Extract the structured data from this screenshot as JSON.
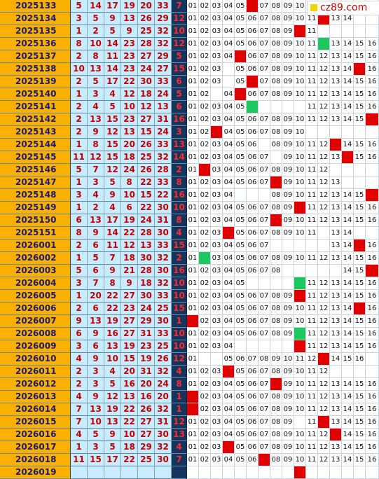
{
  "logo": {
    "text": "cz89.com"
  },
  "rows": [
    {
      "issue": "2025133",
      "reds": [
        "5",
        "14",
        "17",
        "19",
        "20",
        "33"
      ],
      "blue": "7",
      "bz": [
        "01",
        "02",
        "03",
        "04",
        "05",
        "",
        "07",
        "08",
        "09",
        "10",
        "",
        "",
        "",
        "",
        "",
        ""
      ],
      "hit": [
        6
      ],
      "green": []
    },
    {
      "issue": "2025134",
      "reds": [
        "3",
        "5",
        "9",
        "13",
        "26",
        "29"
      ],
      "blue": "12",
      "bz": [
        "01",
        "02",
        "03",
        "04",
        "05",
        "06",
        "07",
        "08",
        "09",
        "10",
        "11",
        "12",
        "13",
        "14",
        "",
        ""
      ],
      "hit": [
        12
      ],
      "green": []
    },
    {
      "issue": "2025135",
      "reds": [
        "1",
        "2",
        "5",
        "9",
        "25",
        "32"
      ],
      "blue": "10",
      "bz": [
        "01",
        "02",
        "03",
        "04",
        "05",
        "06",
        "07",
        "08",
        "09",
        "10",
        "11",
        "",
        "",
        "",
        "",
        ""
      ],
      "hit": [
        10
      ],
      "green": []
    },
    {
      "issue": "2025136",
      "reds": [
        "8",
        "10",
        "14",
        "23",
        "28",
        "32"
      ],
      "blue": "12",
      "bz": [
        "01",
        "02",
        "03",
        "04",
        "05",
        "06",
        "07",
        "08",
        "09",
        "10",
        "11",
        "",
        "13",
        "14",
        "15",
        "16"
      ],
      "hit": [],
      "green": [
        12
      ]
    },
    {
      "issue": "2025137",
      "reds": [
        "2",
        "8",
        "11",
        "23",
        "27",
        "29"
      ],
      "blue": "5",
      "bz": [
        "01",
        "02",
        "03",
        "04",
        "05",
        "06",
        "07",
        "08",
        "09",
        "10",
        "11",
        "12",
        "13",
        "14",
        "15",
        "16"
      ],
      "hit": [
        5
      ],
      "green": []
    },
    {
      "issue": "2025138",
      "reds": [
        "10",
        "13",
        "14",
        "23",
        "24",
        "27"
      ],
      "blue": "15",
      "bz": [
        "01",
        "02",
        "03",
        "",
        "05",
        "06",
        "07",
        "08",
        "09",
        "10",
        "11",
        "12",
        "13",
        "14",
        "15",
        "16"
      ],
      "hit": [
        15
      ],
      "green": []
    },
    {
      "issue": "2025139",
      "reds": [
        "2",
        "5",
        "17",
        "22",
        "30",
        "33"
      ],
      "blue": "6",
      "bz": [
        "01",
        "02",
        "03",
        "",
        "05",
        "06",
        "07",
        "08",
        "09",
        "10",
        "11",
        "12",
        "13",
        "14",
        "15",
        "16"
      ],
      "hit": [
        6
      ],
      "green": []
    },
    {
      "issue": "2025140",
      "reds": [
        "1",
        "3",
        "4",
        "12",
        "18",
        "24"
      ],
      "blue": "5",
      "bz": [
        "01",
        "02",
        "",
        "04",
        "05",
        "06",
        "07",
        "08",
        "09",
        "10",
        "11",
        "12",
        "13",
        "14",
        "15",
        "16"
      ],
      "hit": [
        5
      ],
      "green": []
    },
    {
      "issue": "2025141",
      "reds": [
        "2",
        "4",
        "5",
        "10",
        "12",
        "13"
      ],
      "blue": "6",
      "bz": [
        "01",
        "02",
        "03",
        "04",
        "05",
        "",
        "",
        "",
        "",
        "",
        "11",
        "12",
        "13",
        "14",
        "15",
        "16"
      ],
      "hit": [],
      "green": [
        6
      ]
    },
    {
      "issue": "2025142",
      "reds": [
        "2",
        "13",
        "15",
        "23",
        "27",
        "31"
      ],
      "blue": "16",
      "bz": [
        "01",
        "02",
        "03",
        "04",
        "05",
        "06",
        "07",
        "08",
        "09",
        "10",
        "11",
        "12",
        "13",
        "14",
        "15",
        "16"
      ],
      "hit": [
        16
      ],
      "green": []
    },
    {
      "issue": "2025143",
      "reds": [
        "2",
        "9",
        "12",
        "13",
        "15",
        "24"
      ],
      "blue": "3",
      "bz": [
        "01",
        "02",
        "03",
        "04",
        "05",
        "06",
        "07",
        "08",
        "09",
        "10",
        "",
        "",
        "",
        "",
        "",
        ""
      ],
      "hit": [
        3
      ],
      "green": []
    },
    {
      "issue": "2025144",
      "reds": [
        "1",
        "8",
        "15",
        "20",
        "26",
        "33"
      ],
      "blue": "13",
      "bz": [
        "01",
        "02",
        "03",
        "04",
        "05",
        "06",
        "",
        "08",
        "09",
        "10",
        "11",
        "12",
        "13",
        "14",
        "15",
        "16"
      ],
      "hit": [
        13
      ],
      "green": []
    },
    {
      "issue": "2025145",
      "reds": [
        "11",
        "12",
        "15",
        "18",
        "25",
        "32"
      ],
      "blue": "14",
      "bz": [
        "01",
        "02",
        "03",
        "04",
        "05",
        "06",
        "07",
        "",
        "09",
        "10",
        "11",
        "12",
        "13",
        "14",
        "15",
        "16"
      ],
      "hit": [
        14
      ],
      "green": []
    },
    {
      "issue": "2025146",
      "reds": [
        "5",
        "7",
        "12",
        "24",
        "26",
        "28"
      ],
      "blue": "2",
      "bz": [
        "01",
        "02",
        "03",
        "04",
        "05",
        "06",
        "07",
        "08",
        "09",
        "10",
        "11",
        "12",
        "",
        "",
        "",
        ""
      ],
      "hit": [
        2
      ],
      "green": []
    },
    {
      "issue": "2025147",
      "reds": [
        "1",
        "3",
        "5",
        "8",
        "22",
        "33"
      ],
      "blue": "8",
      "bz": [
        "01",
        "02",
        "03",
        "04",
        "05",
        "06",
        "07",
        "08",
        "09",
        "10",
        "11",
        "12",
        "13",
        "",
        "",
        ""
      ],
      "hit": [
        8
      ],
      "green": []
    },
    {
      "issue": "2025148",
      "reds": [
        "3",
        "4",
        "9",
        "10",
        "15",
        "22"
      ],
      "blue": "16",
      "bz": [
        "01",
        "02",
        "03",
        "04",
        "",
        "",
        "",
        "08",
        "09",
        "10",
        "11",
        "12",
        "13",
        "14",
        "15",
        "16"
      ],
      "hit": [
        16
      ],
      "green": []
    },
    {
      "issue": "2025149",
      "reds": [
        "1",
        "2",
        "4",
        "6",
        "22",
        "30"
      ],
      "blue": "10",
      "bz": [
        "01",
        "02",
        "03",
        "04",
        "05",
        "06",
        "07",
        "08",
        "09",
        "10",
        "11",
        "12",
        "13",
        "14",
        "15",
        "16"
      ],
      "hit": [
        10
      ],
      "green": []
    },
    {
      "issue": "2025150",
      "reds": [
        "6",
        "13",
        "17",
        "19",
        "24",
        "31"
      ],
      "blue": "8",
      "bz": [
        "01",
        "02",
        "03",
        "04",
        "05",
        "06",
        "07",
        "08",
        "09",
        "10",
        "11",
        "12",
        "13",
        "14",
        "15",
        "16"
      ],
      "hit": [
        8
      ],
      "green": []
    },
    {
      "issue": "2025151",
      "reds": [
        "8",
        "9",
        "14",
        "22",
        "28",
        "30"
      ],
      "blue": "4",
      "bz": [
        "01",
        "02",
        "03",
        "04",
        "05",
        "06",
        "07",
        "08",
        "09",
        "10",
        "11",
        "",
        "13",
        "14",
        "",
        ""
      ],
      "hit": [
        4
      ],
      "green": []
    },
    {
      "issue": "2026001",
      "reds": [
        "2",
        "6",
        "11",
        "12",
        "13",
        "33"
      ],
      "blue": "15",
      "bz": [
        "01",
        "02",
        "03",
        "04",
        "05",
        "06",
        "07",
        "",
        "",
        "",
        "",
        "",
        "13",
        "14",
        "15",
        "16"
      ],
      "hit": [
        15
      ],
      "green": []
    },
    {
      "issue": "2026002",
      "reds": [
        "1",
        "5",
        "7",
        "18",
        "30",
        "32"
      ],
      "blue": "2",
      "bz": [
        "01",
        "",
        "03",
        "04",
        "05",
        "06",
        "07",
        "08",
        "09",
        "10",
        "11",
        "12",
        "13",
        "14",
        "15",
        "16"
      ],
      "hit": [],
      "green": [
        2
      ]
    },
    {
      "issue": "2026003",
      "reds": [
        "5",
        "6",
        "9",
        "21",
        "28",
        "30"
      ],
      "blue": "16",
      "bz": [
        "01",
        "02",
        "03",
        "04",
        "05",
        "06",
        "07",
        "08",
        "",
        "",
        "",
        "",
        "",
        "14",
        "15",
        "16"
      ],
      "hit": [
        16
      ],
      "green": []
    },
    {
      "issue": "2026004",
      "reds": [
        "3",
        "7",
        "8",
        "9",
        "18",
        "32"
      ],
      "blue": "10",
      "bz": [
        "01",
        "02",
        "03",
        "04",
        "05",
        "",
        "",
        "",
        "",
        "",
        "11",
        "12",
        "13",
        "14",
        "15",
        "16"
      ],
      "hit": [],
      "green": [
        10
      ]
    },
    {
      "issue": "2026005",
      "reds": [
        "1",
        "20",
        "22",
        "27",
        "30",
        "33"
      ],
      "blue": "10",
      "bz": [
        "01",
        "02",
        "03",
        "04",
        "05",
        "06",
        "07",
        "08",
        "09",
        "10",
        "11",
        "12",
        "13",
        "14",
        "15",
        "16"
      ],
      "hit": [
        10
      ],
      "green": []
    },
    {
      "issue": "2026006",
      "reds": [
        "2",
        "6",
        "22",
        "23",
        "24",
        "25"
      ],
      "blue": "15",
      "bz": [
        "01",
        "02",
        "03",
        "04",
        "05",
        "06",
        "07",
        "08",
        "09",
        "10",
        "11",
        "12",
        "13",
        "14",
        "15",
        "16"
      ],
      "hit": [
        15
      ],
      "green": []
    },
    {
      "issue": "2026007",
      "reds": [
        "9",
        "13",
        "19",
        "27",
        "29",
        "30"
      ],
      "blue": "1",
      "bz": [
        "01",
        "02",
        "03",
        "04",
        "05",
        "06",
        "07",
        "08",
        "09",
        "10",
        "11",
        "12",
        "13",
        "14",
        "15",
        "16"
      ],
      "hit": [
        1
      ],
      "green": []
    },
    {
      "issue": "2026008",
      "reds": [
        "6",
        "9",
        "16",
        "27",
        "31",
        "33"
      ],
      "blue": "10",
      "bz": [
        "01",
        "02",
        "03",
        "04",
        "05",
        "06",
        "07",
        "08",
        "09",
        "",
        "11",
        "12",
        "13",
        "14",
        "15",
        "16"
      ],
      "hit": [],
      "green": [
        10
      ]
    },
    {
      "issue": "2026009",
      "reds": [
        "3",
        "6",
        "13",
        "19",
        "23",
        "25"
      ],
      "blue": "10",
      "bz": [
        "01",
        "02",
        "03",
        "04",
        "",
        "",
        "",
        "",
        "",
        "10",
        "11",
        "12",
        "13",
        "14",
        "15",
        "16"
      ],
      "hit": [
        10
      ],
      "green": []
    },
    {
      "issue": "2026010",
      "reds": [
        "4",
        "9",
        "10",
        "15",
        "19",
        "26"
      ],
      "blue": "12",
      "bz": [
        "01",
        "",
        "",
        "05",
        "06",
        "07",
        "08",
        "09",
        "10",
        "11",
        "12",
        "13",
        "14",
        "15",
        "16",
        ""
      ],
      "hit": [
        12
      ],
      "green": []
    },
    {
      "issue": "2026011",
      "reds": [
        "2",
        "3",
        "4",
        "20",
        "31",
        "32"
      ],
      "blue": "4",
      "bz": [
        "01",
        "02",
        "03",
        "04",
        "05",
        "06",
        "07",
        "08",
        "09",
        "10",
        "11",
        "12",
        "",
        "",
        "",
        ""
      ],
      "hit": [
        4
      ],
      "green": []
    },
    {
      "issue": "2026012",
      "reds": [
        "2",
        "3",
        "5",
        "16",
        "20",
        "24"
      ],
      "blue": "8",
      "bz": [
        "01",
        "02",
        "03",
        "04",
        "05",
        "06",
        "07",
        "08",
        "09",
        "10",
        "11",
        "12",
        "13",
        "14",
        "15",
        "16"
      ],
      "hit": [
        8
      ],
      "green": []
    },
    {
      "issue": "2026013",
      "reds": [
        "4",
        "9",
        "12",
        "13",
        "16",
        "20"
      ],
      "blue": "1",
      "bz": [
        "01",
        "02",
        "03",
        "04",
        "05",
        "06",
        "07",
        "08",
        "09",
        "10",
        "11",
        "12",
        "13",
        "14",
        "15",
        "16"
      ],
      "hit": [
        1
      ],
      "green": []
    },
    {
      "issue": "2026014",
      "reds": [
        "7",
        "13",
        "19",
        "22",
        "26",
        "32"
      ],
      "blue": "1",
      "bz": [
        "01",
        "02",
        "03",
        "04",
        "05",
        "06",
        "07",
        "08",
        "09",
        "10",
        "11",
        "12",
        "13",
        "14",
        "15",
        "16"
      ],
      "hit": [
        1
      ],
      "green": []
    },
    {
      "issue": "2026015",
      "reds": [
        "7",
        "10",
        "13",
        "22",
        "27",
        "31"
      ],
      "blue": "12",
      "bz": [
        "01",
        "02",
        "03",
        "04",
        "05",
        "06",
        "07",
        "08",
        "09",
        "",
        "11",
        "12",
        "13",
        "14",
        "15",
        "16"
      ],
      "hit": [
        12
      ],
      "green": []
    },
    {
      "issue": "2026016",
      "reds": [
        "4",
        "5",
        "9",
        "10",
        "27",
        "30"
      ],
      "blue": "13",
      "bz": [
        "01",
        "02",
        "03",
        "04",
        "05",
        "06",
        "07",
        "08",
        "09",
        "10",
        "11",
        "12",
        "13",
        "14",
        "15",
        "16"
      ],
      "hit": [
        13
      ],
      "green": []
    },
    {
      "issue": "2026017",
      "reds": [
        "1",
        "3",
        "5",
        "18",
        "29",
        "32"
      ],
      "blue": "4",
      "bz": [
        "01",
        "02",
        "03",
        "04",
        "05",
        "06",
        "07",
        "08",
        "09",
        "10",
        "11",
        "12",
        "13",
        "14",
        "15",
        "16"
      ],
      "hit": [
        4
      ],
      "green": []
    },
    {
      "issue": "2026018",
      "reds": [
        "11",
        "15",
        "17",
        "22",
        "25",
        "30"
      ],
      "blue": "7",
      "bz": [
        "01",
        "02",
        "03",
        "04",
        "05",
        "06",
        "07",
        "08",
        "09",
        "10",
        "11",
        "12",
        "13",
        "14",
        "15",
        "16"
      ],
      "hit": [
        7
      ],
      "green": []
    },
    {
      "issue": "2026019",
      "reds": [
        "",
        "",
        "",
        "",
        "",
        ""
      ],
      "blue": "",
      "bz": [
        "",
        "",
        "",
        "",
        "",
        "",
        "",
        "",
        "",
        "",
        "",
        "",
        "",
        "",
        "",
        ""
      ],
      "hit": [
        10
      ],
      "green": []
    }
  ],
  "colors": {
    "issue_bg": "#f9b000",
    "red_bg": "#c8ecff",
    "red_text": "#c40000",
    "blue_bg": "#14355e",
    "blue_text": "#ff2a2a",
    "hit": "#e00000",
    "green": "#1ec65e"
  }
}
